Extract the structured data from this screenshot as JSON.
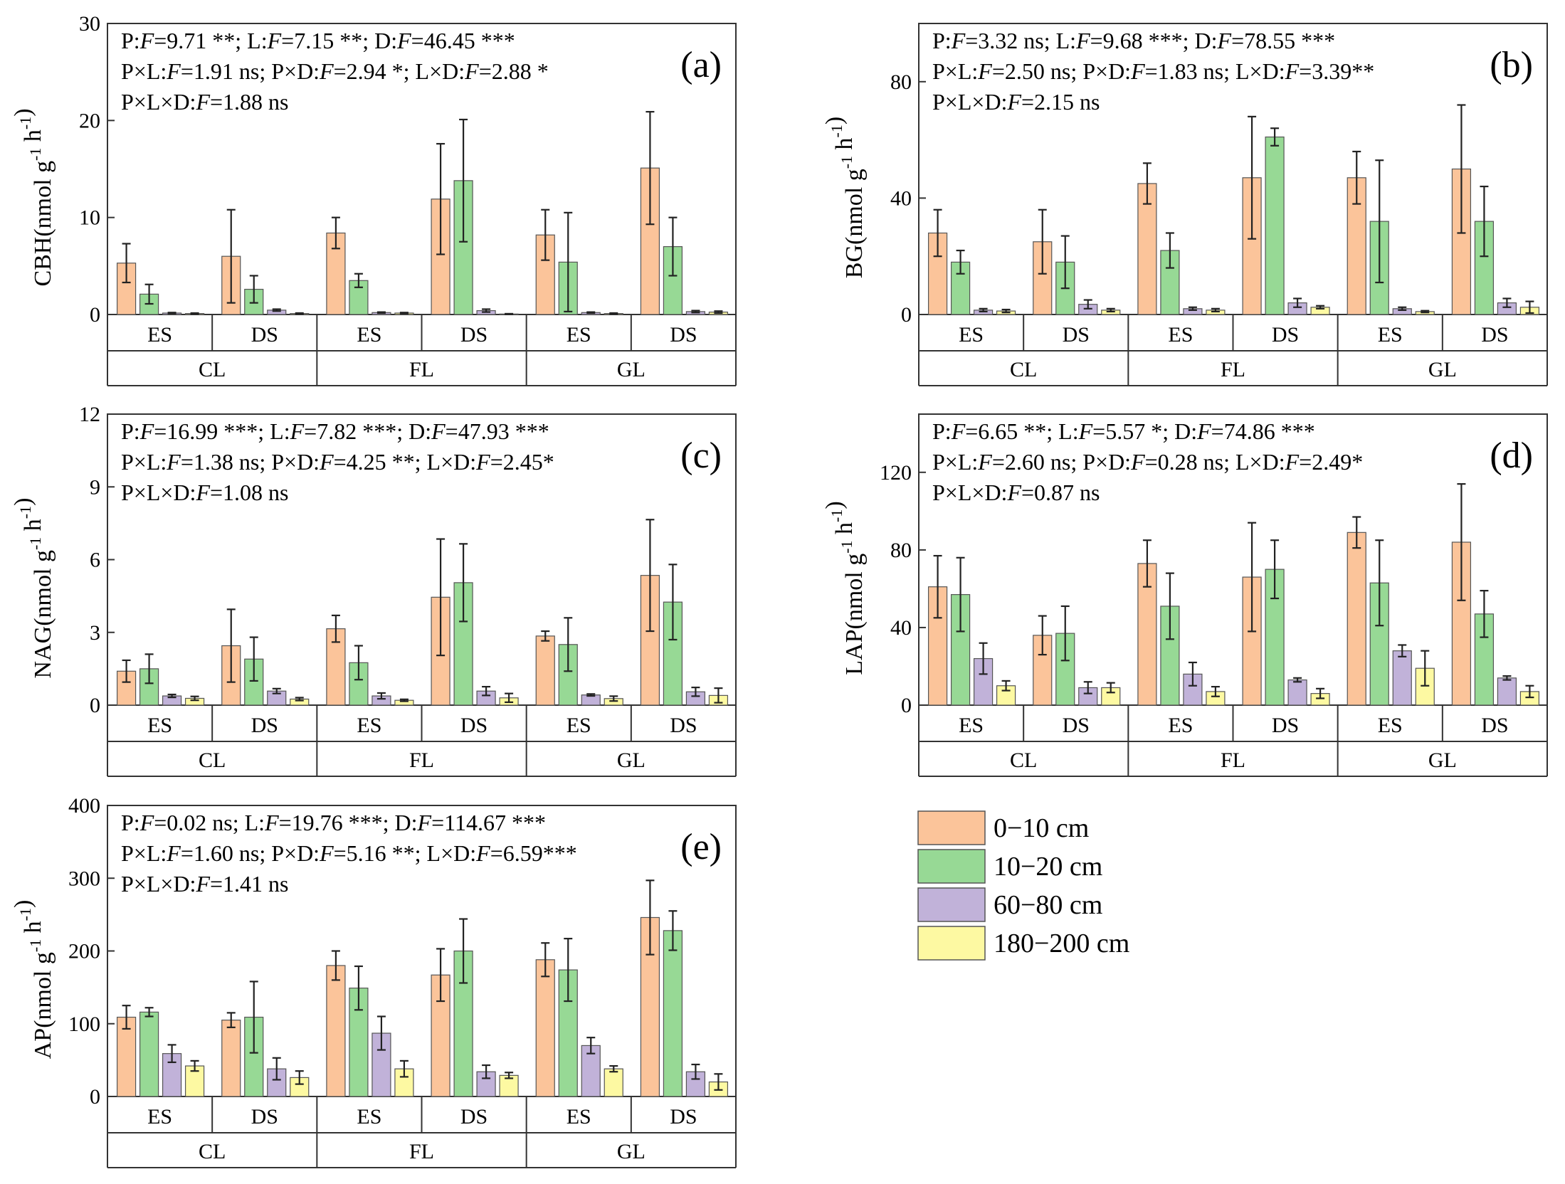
{
  "chart_data": [
    {
      "type": "bar",
      "panel": "(a)",
      "ylabel": "CBH(nmol g⁻¹ h⁻¹)",
      "ylim": [
        0,
        30
      ],
      "yticks": [
        "0",
        "10",
        "20",
        "30"
      ],
      "stats": [
        "P:F=9.71 **; L:F=7.15 **; D:F=46.45 ***",
        "P×L:F=1.91 ns; P×D:F=2.94 *; L×D:F=2.88 *",
        "P×L×D:F=1.88 ns"
      ],
      "groups": [
        "CL",
        "FL",
        "GL"
      ],
      "subgroups": [
        "ES",
        "DS",
        "ES",
        "DS",
        "ES",
        "DS"
      ],
      "series": [
        {
          "name": "0−10 cm",
          "values": [
            5.3,
            6.0,
            8.4,
            11.9,
            8.2,
            15.1
          ],
          "errors": [
            2.0,
            4.8,
            1.6,
            5.7,
            2.6,
            5.8
          ]
        },
        {
          "name": "10−20 cm",
          "values": [
            2.1,
            2.6,
            3.5,
            13.8,
            5.4,
            7.0
          ],
          "errors": [
            1.0,
            1.4,
            0.7,
            6.3,
            5.1,
            3.0
          ]
        },
        {
          "name": "60−80 cm",
          "values": [
            0.15,
            0.45,
            0.2,
            0.4,
            0.2,
            0.3
          ],
          "errors": [
            0.05,
            0.1,
            0.05,
            0.15,
            0.05,
            0.1
          ]
        },
        {
          "name": "180−200 cm",
          "values": [
            0.1,
            0.1,
            0.15,
            0.05,
            0.1,
            0.25
          ],
          "errors": [
            0.05,
            0.05,
            0.05,
            0.03,
            0.05,
            0.1
          ]
        }
      ]
    },
    {
      "type": "bar",
      "panel": "(b)",
      "ylabel": "BG(nmol g⁻¹ h⁻¹)",
      "ylim": [
        0,
        100
      ],
      "yticks": [
        "0",
        "40",
        "80"
      ],
      "stats": [
        "P:F=3.32 ns; L:F=9.68 ***; D:F=78.55 ***",
        "P×L:F=2.50 ns; P×D:F=1.83 ns;  L×D:F=3.39**",
        "P×L×D:F=2.15 ns"
      ],
      "groups": [
        "CL",
        "FL",
        "GL"
      ],
      "subgroups": [
        "ES",
        "DS",
        "ES",
        "DS",
        "ES",
        "DS"
      ],
      "series": [
        {
          "name": "0−10 cm",
          "values": [
            28,
            25,
            45,
            47,
            47,
            50
          ],
          "errors": [
            8,
            11,
            7,
            21,
            9,
            22
          ]
        },
        {
          "name": "10−20 cm",
          "values": [
            18,
            18,
            22,
            61,
            32,
            32
          ],
          "errors": [
            4,
            9,
            6,
            3,
            21,
            12
          ]
        },
        {
          "name": "60−80 cm",
          "values": [
            1.5,
            3.5,
            2,
            4,
            2,
            4
          ],
          "errors": [
            0.5,
            1.5,
            0.5,
            1.5,
            0.5,
            1.5
          ]
        },
        {
          "name": "180−200 cm",
          "values": [
            1.2,
            1.5,
            1.5,
            2.5,
            1,
            2.5
          ],
          "errors": [
            0.5,
            0.5,
            0.5,
            0.5,
            0.3,
            2
          ]
        }
      ]
    },
    {
      "type": "bar",
      "panel": "(c)",
      "ylabel": "NAG(nmol g⁻¹ h⁻¹)",
      "ylim": [
        0,
        12
      ],
      "yticks": [
        "0",
        "3",
        "6",
        "9",
        "12"
      ],
      "stats": [
        "P:F=16.99 ***; L:F=7.82 ***; D:F=47.93 ***",
        "P×L:F=1.38 ns; P×D:F=4.25 **;  L×D:F=2.45*",
        "P×L×D:F=1.08 ns"
      ],
      "groups": [
        "CL",
        "FL",
        "GL"
      ],
      "subgroups": [
        "ES",
        "DS",
        "ES",
        "DS",
        "ES",
        "DS"
      ],
      "series": [
        {
          "name": "0−10 cm",
          "values": [
            1.4,
            2.45,
            3.15,
            4.45,
            2.85,
            5.35
          ],
          "errors": [
            0.45,
            1.5,
            0.55,
            2.4,
            0.2,
            2.3
          ]
        },
        {
          "name": "10−20 cm",
          "values": [
            1.5,
            1.9,
            1.75,
            5.05,
            2.5,
            4.25
          ],
          "errors": [
            0.6,
            0.9,
            0.7,
            1.6,
            1.1,
            1.55
          ]
        },
        {
          "name": "60−80 cm",
          "values": [
            0.38,
            0.58,
            0.38,
            0.58,
            0.42,
            0.55
          ],
          "errors": [
            0.06,
            0.1,
            0.12,
            0.18,
            0.04,
            0.18
          ]
        },
        {
          "name": "180−200 cm",
          "values": [
            0.28,
            0.25,
            0.2,
            0.3,
            0.27,
            0.4
          ],
          "errors": [
            0.08,
            0.06,
            0.04,
            0.18,
            0.1,
            0.3
          ]
        }
      ]
    },
    {
      "type": "bar",
      "panel": "(d)",
      "ylabel": "LAP(nmol g⁻¹ h⁻¹)",
      "ylim": [
        0,
        150
      ],
      "yticks": [
        "0",
        "40",
        "80",
        "120"
      ],
      "stats": [
        "P:F=6.65 **; L:F=5.57 *; D:F=74.86 ***",
        "P×L:F=2.60 ns; P×D:F=0.28 ns;  L×D:F=2.49*",
        "P×L×D:F=0.87 ns"
      ],
      "groups": [
        "CL",
        "FL",
        "GL"
      ],
      "subgroups": [
        "ES",
        "DS",
        "ES",
        "DS",
        "ES",
        "DS"
      ],
      "series": [
        {
          "name": "0−10 cm",
          "values": [
            61,
            36,
            73,
            66,
            89,
            84
          ],
          "errors": [
            16,
            10,
            12,
            28,
            8,
            30
          ]
        },
        {
          "name": "10−20 cm",
          "values": [
            57,
            37,
            51,
            70,
            63,
            47
          ],
          "errors": [
            19,
            14,
            17,
            15,
            22,
            12
          ]
        },
        {
          "name": "60−80 cm",
          "values": [
            24,
            9,
            16,
            13,
            28,
            14
          ],
          "errors": [
            8,
            3,
            6,
            1,
            3,
            1
          ]
        },
        {
          "name": "180−200 cm",
          "values": [
            10,
            9,
            7,
            6,
            19,
            7
          ],
          "errors": [
            2.5,
            2.5,
            2.5,
            2.5,
            9,
            3
          ]
        }
      ]
    },
    {
      "type": "bar",
      "panel": "(e)",
      "ylabel": "AP(nmol g⁻¹ h⁻¹)",
      "ylim": [
        0,
        400
      ],
      "yticks": [
        "0",
        "100",
        "200",
        "300",
        "400"
      ],
      "stats": [
        "P:F=0.02 ns; L:F=19.76 ***; D:F=114.67 ***",
        "P×L:F=1.60 ns; P×D:F=5.16 **;  L×D:F=6.59***",
        "P×L×D:F=1.41 ns"
      ],
      "groups": [
        "CL",
        "FL",
        "GL"
      ],
      "subgroups": [
        "ES",
        "DS",
        "ES",
        "DS",
        "ES",
        "DS"
      ],
      "series": [
        {
          "name": "0−10 cm",
          "values": [
            109,
            105,
            180,
            167,
            188,
            246
          ],
          "errors": [
            16,
            10,
            20,
            36,
            23,
            51
          ]
        },
        {
          "name": "10−20 cm",
          "values": [
            116,
            109,
            149,
            200,
            174,
            228
          ],
          "errors": [
            6,
            49,
            30,
            44,
            43,
            27
          ]
        },
        {
          "name": "60−80 cm",
          "values": [
            59,
            38,
            87,
            34,
            70,
            34
          ],
          "errors": [
            12,
            15,
            23,
            9,
            11,
            10
          ]
        },
        {
          "name": "180−200 cm",
          "values": [
            42,
            26,
            38,
            29,
            38,
            20
          ],
          "errors": [
            7,
            9,
            11,
            4,
            4,
            11
          ]
        }
      ]
    }
  ],
  "legend": [
    {
      "label": "0−10 cm",
      "color": "#fbc49a"
    },
    {
      "label": "10−20 cm",
      "color": "#97d995"
    },
    {
      "label": "60−80 cm",
      "color": "#c1b2d9"
    },
    {
      "label": "180−200 cm",
      "color": "#fdf9a2"
    }
  ]
}
